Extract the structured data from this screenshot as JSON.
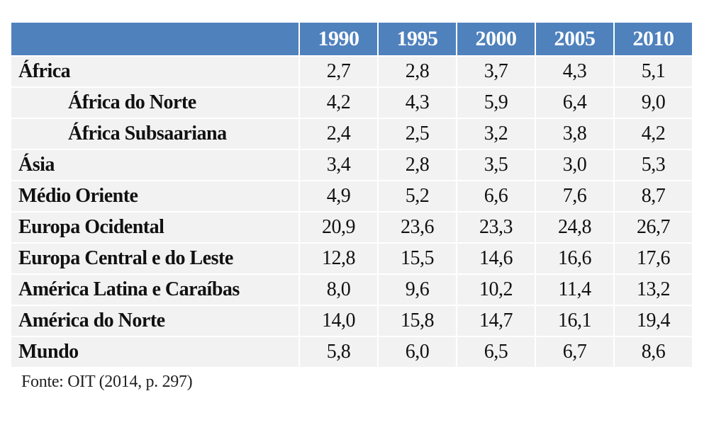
{
  "table": {
    "header": {
      "corner": "",
      "years": [
        "1990",
        "1995",
        "2000",
        "2005",
        "2010"
      ]
    },
    "rows": [
      {
        "region": "África",
        "indent": false,
        "values": [
          "2,7",
          "2,8",
          "3,7",
          "4,3",
          "5,1"
        ]
      },
      {
        "region": "África do Norte",
        "indent": true,
        "values": [
          "4,2",
          "4,3",
          "5,9",
          "6,4",
          "9,0"
        ]
      },
      {
        "region": "África Subsaariana",
        "indent": true,
        "values": [
          "2,4",
          "2,5",
          "3,2",
          "3,8",
          "4,2"
        ]
      },
      {
        "region": "Ásia",
        "indent": false,
        "values": [
          "3,4",
          "2,8",
          "3,5",
          "3,0",
          "5,3"
        ]
      },
      {
        "region": "Médio Oriente",
        "indent": false,
        "values": [
          "4,9",
          "5,2",
          "6,6",
          "7,6",
          "8,7"
        ]
      },
      {
        "region": "Europa Ocidental",
        "indent": false,
        "values": [
          "20,9",
          "23,6",
          "23,3",
          "24,8",
          "26,7"
        ]
      },
      {
        "region": "Europa Central e do Leste",
        "indent": false,
        "values": [
          "12,8",
          "15,5",
          "14,6",
          "16,6",
          "17,6"
        ]
      },
      {
        "region": "América Latina e Caraíbas",
        "indent": false,
        "values": [
          "8,0",
          "9,6",
          "10,2",
          "11,4",
          "13,2"
        ]
      },
      {
        "region": "América do Norte",
        "indent": false,
        "values": [
          "14,0",
          "15,8",
          "14,7",
          "16,1",
          "19,4"
        ]
      },
      {
        "region": "Mundo",
        "indent": false,
        "values": [
          "5,8",
          "6,0",
          "6,5",
          "6,7",
          "8,6"
        ]
      }
    ]
  },
  "source": "Fonte: OIT (2014, p. 297)",
  "colors": {
    "header_bg": "#4f81bd",
    "header_text": "#ffffff",
    "cell_bg": "#f2f2f2"
  }
}
